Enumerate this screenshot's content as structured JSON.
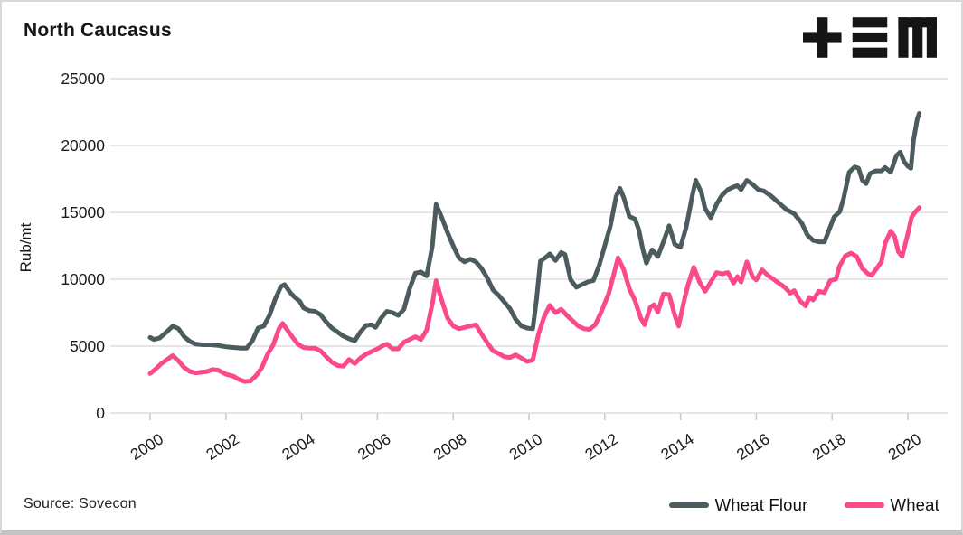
{
  "header": {
    "title": "North Caucasus"
  },
  "logo": {
    "label": "tem-logo"
  },
  "footer": {
    "source": "Source: Sovecon"
  },
  "colors": {
    "wheat_flour": "#4c5c5e",
    "wheat": "#fb4a8c",
    "gridline": "#d8d8d8",
    "tick": "#c9c9c9",
    "axis_text": "#1a1a1a",
    "logo": "#151515",
    "card_border": "#d8d8d8"
  },
  "chart_data": {
    "type": "line",
    "title": "North Caucasus",
    "xlabel": "",
    "ylabel": "Rub/mt",
    "ylim": [
      0,
      25000
    ],
    "xlim": [
      1998.95,
      2021.05
    ],
    "y_ticks": [
      0,
      5000,
      10000,
      15000,
      20000,
      25000
    ],
    "x_ticks": [
      2000,
      2002,
      2004,
      2006,
      2008,
      2010,
      2012,
      2014,
      2016,
      2018,
      2020
    ],
    "grid": "horizontal",
    "legend_position": "bottom-right",
    "x_tick_rotation_deg": -32,
    "series": [
      {
        "name": "Wheat Flour",
        "color": "#4c5c5e",
        "points": [
          [
            2000.0,
            5650
          ],
          [
            2000.1,
            5500
          ],
          [
            2000.25,
            5600
          ],
          [
            2000.45,
            6100
          ],
          [
            2000.6,
            6500
          ],
          [
            2000.75,
            6300
          ],
          [
            2000.9,
            5700
          ],
          [
            2001.05,
            5350
          ],
          [
            2001.2,
            5150
          ],
          [
            2001.4,
            5100
          ],
          [
            2001.6,
            5100
          ],
          [
            2001.8,
            5050
          ],
          [
            2002.0,
            4950
          ],
          [
            2002.2,
            4900
          ],
          [
            2002.4,
            4850
          ],
          [
            2002.55,
            4850
          ],
          [
            2002.7,
            5400
          ],
          [
            2002.85,
            6350
          ],
          [
            2003.0,
            6500
          ],
          [
            2003.15,
            7300
          ],
          [
            2003.3,
            8500
          ],
          [
            2003.45,
            9450
          ],
          [
            2003.55,
            9600
          ],
          [
            2003.7,
            9000
          ],
          [
            2003.8,
            8700
          ],
          [
            2003.95,
            8350
          ],
          [
            2004.05,
            7850
          ],
          [
            2004.2,
            7650
          ],
          [
            2004.35,
            7600
          ],
          [
            2004.5,
            7350
          ],
          [
            2004.65,
            6800
          ],
          [
            2004.8,
            6350
          ],
          [
            2004.95,
            6050
          ],
          [
            2005.1,
            5750
          ],
          [
            2005.25,
            5550
          ],
          [
            2005.4,
            5400
          ],
          [
            2005.55,
            6050
          ],
          [
            2005.7,
            6550
          ],
          [
            2005.85,
            6600
          ],
          [
            2005.95,
            6400
          ],
          [
            2006.1,
            7100
          ],
          [
            2006.25,
            7600
          ],
          [
            2006.4,
            7500
          ],
          [
            2006.55,
            7300
          ],
          [
            2006.7,
            7750
          ],
          [
            2006.85,
            9300
          ],
          [
            2007.0,
            10450
          ],
          [
            2007.15,
            10550
          ],
          [
            2007.3,
            10250
          ],
          [
            2007.45,
            12500
          ],
          [
            2007.55,
            15600
          ],
          [
            2007.7,
            14600
          ],
          [
            2007.85,
            13500
          ],
          [
            2008.0,
            12500
          ],
          [
            2008.15,
            11600
          ],
          [
            2008.3,
            11300
          ],
          [
            2008.45,
            11500
          ],
          [
            2008.6,
            11300
          ],
          [
            2008.75,
            10800
          ],
          [
            2008.9,
            10100
          ],
          [
            2009.05,
            9200
          ],
          [
            2009.2,
            8800
          ],
          [
            2009.35,
            8300
          ],
          [
            2009.5,
            7800
          ],
          [
            2009.65,
            7000
          ],
          [
            2009.8,
            6500
          ],
          [
            2009.95,
            6350
          ],
          [
            2010.1,
            6300
          ],
          [
            2010.2,
            8500
          ],
          [
            2010.3,
            11350
          ],
          [
            2010.45,
            11650
          ],
          [
            2010.55,
            11900
          ],
          [
            2010.7,
            11400
          ],
          [
            2010.85,
            12000
          ],
          [
            2010.95,
            11850
          ],
          [
            2011.1,
            9950
          ],
          [
            2011.25,
            9400
          ],
          [
            2011.4,
            9600
          ],
          [
            2011.55,
            9800
          ],
          [
            2011.7,
            9900
          ],
          [
            2011.85,
            11000
          ],
          [
            2012.0,
            12500
          ],
          [
            2012.15,
            14000
          ],
          [
            2012.3,
            16200
          ],
          [
            2012.4,
            16800
          ],
          [
            2012.5,
            16100
          ],
          [
            2012.65,
            14700
          ],
          [
            2012.8,
            14500
          ],
          [
            2012.9,
            13700
          ],
          [
            2013.0,
            12300
          ],
          [
            2013.1,
            11200
          ],
          [
            2013.25,
            12200
          ],
          [
            2013.4,
            11700
          ],
          [
            2013.55,
            12800
          ],
          [
            2013.7,
            14000
          ],
          [
            2013.85,
            12600
          ],
          [
            2014.0,
            12400
          ],
          [
            2014.15,
            13900
          ],
          [
            2014.3,
            16100
          ],
          [
            2014.4,
            17400
          ],
          [
            2014.55,
            16500
          ],
          [
            2014.65,
            15300
          ],
          [
            2014.8,
            14600
          ],
          [
            2014.95,
            15600
          ],
          [
            2015.1,
            16300
          ],
          [
            2015.25,
            16700
          ],
          [
            2015.4,
            16900
          ],
          [
            2015.5,
            17000
          ],
          [
            2015.6,
            16700
          ],
          [
            2015.75,
            17400
          ],
          [
            2015.9,
            17100
          ],
          [
            2016.05,
            16700
          ],
          [
            2016.2,
            16600
          ],
          [
            2016.4,
            16200
          ],
          [
            2016.6,
            15700
          ],
          [
            2016.8,
            15200
          ],
          [
            2017.0,
            14900
          ],
          [
            2017.2,
            14200
          ],
          [
            2017.35,
            13300
          ],
          [
            2017.5,
            12900
          ],
          [
            2017.65,
            12800
          ],
          [
            2017.8,
            12800
          ],
          [
            2017.95,
            13900
          ],
          [
            2018.05,
            14650
          ],
          [
            2018.2,
            15050
          ],
          [
            2018.3,
            16000
          ],
          [
            2018.45,
            18000
          ],
          [
            2018.6,
            18400
          ],
          [
            2018.7,
            18300
          ],
          [
            2018.8,
            17400
          ],
          [
            2018.9,
            17150
          ],
          [
            2019.0,
            17900
          ],
          [
            2019.15,
            18100
          ],
          [
            2019.3,
            18100
          ],
          [
            2019.4,
            18350
          ],
          [
            2019.55,
            18000
          ],
          [
            2019.7,
            19250
          ],
          [
            2019.8,
            19500
          ],
          [
            2019.9,
            18800
          ],
          [
            2020.0,
            18450
          ],
          [
            2020.08,
            18300
          ],
          [
            2020.15,
            20400
          ],
          [
            2020.25,
            22000
          ],
          [
            2020.3,
            22400
          ]
        ]
      },
      {
        "name": "Wheat",
        "color": "#fb4a8c",
        "points": [
          [
            2000.0,
            2950
          ],
          [
            2000.15,
            3300
          ],
          [
            2000.3,
            3700
          ],
          [
            2000.45,
            4000
          ],
          [
            2000.6,
            4300
          ],
          [
            2000.75,
            3900
          ],
          [
            2000.9,
            3400
          ],
          [
            2001.05,
            3100
          ],
          [
            2001.2,
            3000
          ],
          [
            2001.35,
            3050
          ],
          [
            2001.5,
            3100
          ],
          [
            2001.65,
            3250
          ],
          [
            2001.8,
            3200
          ],
          [
            2002.0,
            2900
          ],
          [
            2002.2,
            2750
          ],
          [
            2002.35,
            2500
          ],
          [
            2002.5,
            2350
          ],
          [
            2002.65,
            2400
          ],
          [
            2002.8,
            2800
          ],
          [
            2002.95,
            3400
          ],
          [
            2003.1,
            4400
          ],
          [
            2003.25,
            5100
          ],
          [
            2003.4,
            6300
          ],
          [
            2003.5,
            6700
          ],
          [
            2003.6,
            6300
          ],
          [
            2003.75,
            5700
          ],
          [
            2003.9,
            5150
          ],
          [
            2004.05,
            4900
          ],
          [
            2004.2,
            4850
          ],
          [
            2004.35,
            4850
          ],
          [
            2004.5,
            4650
          ],
          [
            2004.65,
            4200
          ],
          [
            2004.8,
            3800
          ],
          [
            2004.95,
            3550
          ],
          [
            2005.1,
            3500
          ],
          [
            2005.25,
            4000
          ],
          [
            2005.4,
            3700
          ],
          [
            2005.55,
            4100
          ],
          [
            2005.7,
            4400
          ],
          [
            2005.85,
            4600
          ],
          [
            2006.0,
            4800
          ],
          [
            2006.15,
            5050
          ],
          [
            2006.25,
            5150
          ],
          [
            2006.4,
            4800
          ],
          [
            2006.55,
            4800
          ],
          [
            2006.7,
            5300
          ],
          [
            2006.85,
            5500
          ],
          [
            2007.0,
            5700
          ],
          [
            2007.15,
            5500
          ],
          [
            2007.3,
            6200
          ],
          [
            2007.45,
            8200
          ],
          [
            2007.55,
            9900
          ],
          [
            2007.7,
            8400
          ],
          [
            2007.85,
            7100
          ],
          [
            2008.0,
            6500
          ],
          [
            2008.15,
            6300
          ],
          [
            2008.3,
            6400
          ],
          [
            2008.45,
            6500
          ],
          [
            2008.6,
            6600
          ],
          [
            2008.75,
            5900
          ],
          [
            2008.9,
            5250
          ],
          [
            2009.05,
            4650
          ],
          [
            2009.2,
            4450
          ],
          [
            2009.35,
            4200
          ],
          [
            2009.5,
            4150
          ],
          [
            2009.65,
            4350
          ],
          [
            2009.8,
            4100
          ],
          [
            2009.95,
            3850
          ],
          [
            2010.1,
            3950
          ],
          [
            2010.25,
            5900
          ],
          [
            2010.4,
            7200
          ],
          [
            2010.55,
            8050
          ],
          [
            2010.7,
            7500
          ],
          [
            2010.85,
            7750
          ],
          [
            2011.0,
            7300
          ],
          [
            2011.15,
            6900
          ],
          [
            2011.3,
            6500
          ],
          [
            2011.45,
            6300
          ],
          [
            2011.6,
            6250
          ],
          [
            2011.75,
            6600
          ],
          [
            2011.9,
            7500
          ],
          [
            2012.0,
            8200
          ],
          [
            2012.1,
            8900
          ],
          [
            2012.25,
            10500
          ],
          [
            2012.35,
            11600
          ],
          [
            2012.5,
            10700
          ],
          [
            2012.65,
            9300
          ],
          [
            2012.8,
            8400
          ],
          [
            2012.95,
            7100
          ],
          [
            2013.05,
            6600
          ],
          [
            2013.2,
            7900
          ],
          [
            2013.3,
            8100
          ],
          [
            2013.4,
            7550
          ],
          [
            2013.55,
            8900
          ],
          [
            2013.7,
            8850
          ],
          [
            2013.85,
            7300
          ],
          [
            2013.95,
            6500
          ],
          [
            2014.1,
            8450
          ],
          [
            2014.2,
            9600
          ],
          [
            2014.35,
            10900
          ],
          [
            2014.5,
            9800
          ],
          [
            2014.65,
            9100
          ],
          [
            2014.8,
            9800
          ],
          [
            2014.95,
            10500
          ],
          [
            2015.1,
            10400
          ],
          [
            2015.25,
            10500
          ],
          [
            2015.4,
            9700
          ],
          [
            2015.5,
            10200
          ],
          [
            2015.6,
            9800
          ],
          [
            2015.75,
            11300
          ],
          [
            2015.9,
            10200
          ],
          [
            2016.0,
            9950
          ],
          [
            2016.15,
            10700
          ],
          [
            2016.3,
            10300
          ],
          [
            2016.45,
            10000
          ],
          [
            2016.6,
            9700
          ],
          [
            2016.75,
            9400
          ],
          [
            2016.9,
            8950
          ],
          [
            2017.0,
            9150
          ],
          [
            2017.15,
            8400
          ],
          [
            2017.3,
            8000
          ],
          [
            2017.4,
            8650
          ],
          [
            2017.5,
            8450
          ],
          [
            2017.65,
            9100
          ],
          [
            2017.8,
            9000
          ],
          [
            2017.95,
            9900
          ],
          [
            2018.1,
            10000
          ],
          [
            2018.2,
            11000
          ],
          [
            2018.35,
            11750
          ],
          [
            2018.5,
            11950
          ],
          [
            2018.65,
            11700
          ],
          [
            2018.8,
            10800
          ],
          [
            2018.95,
            10400
          ],
          [
            2019.05,
            10300
          ],
          [
            2019.2,
            10900
          ],
          [
            2019.3,
            11300
          ],
          [
            2019.4,
            12700
          ],
          [
            2019.55,
            13600
          ],
          [
            2019.65,
            13200
          ],
          [
            2019.75,
            12050
          ],
          [
            2019.85,
            11700
          ],
          [
            2020.0,
            13400
          ],
          [
            2020.1,
            14650
          ],
          [
            2020.2,
            15050
          ],
          [
            2020.3,
            15350
          ]
        ]
      }
    ]
  }
}
